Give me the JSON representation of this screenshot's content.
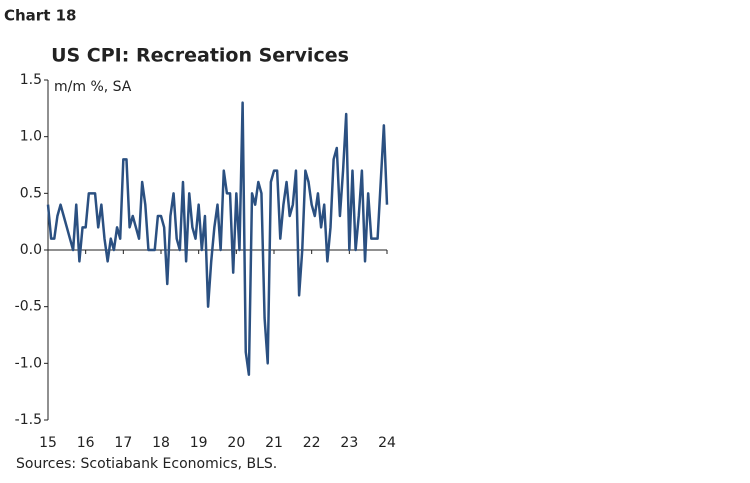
{
  "chart_data": {
    "type": "line",
    "label": "Chart 18",
    "title": "US CPI: Recreation Services",
    "y_label": "m/m %, SA",
    "source": "Sources: Scotiabank Economics, BLS.",
    "categories": [
      "15",
      null,
      null,
      null,
      null,
      null,
      null,
      null,
      null,
      null,
      null,
      null,
      "16",
      null,
      null,
      null,
      null,
      null,
      null,
      null,
      null,
      null,
      null,
      null,
      "17",
      null,
      null,
      null,
      null,
      null,
      null,
      null,
      null,
      null,
      null,
      null,
      "18",
      null,
      null,
      null,
      null,
      null,
      null,
      null,
      null,
      null,
      null,
      null,
      "19",
      null,
      null,
      null,
      null,
      null,
      null,
      null,
      null,
      null,
      null,
      null,
      "20",
      null,
      null,
      null,
      null,
      null,
      null,
      null,
      null,
      null,
      null,
      null,
      "21",
      null,
      null,
      null,
      null,
      null,
      null,
      null,
      null,
      null,
      null,
      null,
      "22",
      null,
      null,
      null,
      null,
      null,
      null,
      null,
      null,
      null,
      null,
      null,
      "23",
      null,
      null,
      null,
      null,
      null,
      null,
      null,
      null,
      null,
      null,
      null,
      "24"
    ],
    "series": [
      {
        "color": "#2b5081",
        "values": [
          0.4,
          0.1,
          0.1,
          0.3,
          0.4,
          0.3,
          0.2,
          0.1,
          0.0,
          0.4,
          -0.1,
          0.2,
          0.2,
          0.5,
          0.5,
          0.5,
          0.2,
          0.4,
          0.1,
          -0.1,
          0.1,
          0.0,
          0.2,
          0.1,
          0.8,
          0.8,
          0.2,
          0.3,
          0.2,
          0.1,
          0.6,
          0.4,
          0.0,
          0.0,
          0.0,
          0.3,
          0.3,
          0.2,
          -0.3,
          0.3,
          0.5,
          0.1,
          0.0,
          0.6,
          -0.1,
          0.5,
          0.2,
          0.1,
          0.4,
          0.0,
          0.3,
          -0.5,
          -0.1,
          0.2,
          0.4,
          0.0,
          0.7,
          0.5,
          0.5,
          -0.2,
          0.5,
          0.0,
          1.3,
          -0.9,
          -1.1,
          0.5,
          0.4,
          0.6,
          0.5,
          -0.6,
          -1.0,
          0.6,
          0.7,
          0.7,
          0.1,
          0.4,
          0.6,
          0.3,
          0.4,
          0.7,
          -0.4,
          0.0,
          0.7,
          0.6,
          0.4,
          0.3,
          0.5,
          0.2,
          0.4,
          -0.1,
          0.2,
          0.8,
          0.9,
          0.3,
          0.7,
          1.2,
          0.0,
          0.7,
          0.0,
          0.3,
          0.7,
          -0.1,
          0.5,
          0.1,
          0.1,
          0.1,
          0.6,
          1.1,
          0.4
        ]
      }
    ],
    "ylim": [
      -1.5,
      1.5
    ],
    "yticks": [
      1.5,
      {
        "value": 1.0,
        "label": "1.0"
      },
      0.5,
      {
        "value": 0.0,
        "label": "0.0"
      },
      -0.5,
      {
        "value": -1.0,
        "label": "-1.0"
      },
      -1.5
    ]
  }
}
